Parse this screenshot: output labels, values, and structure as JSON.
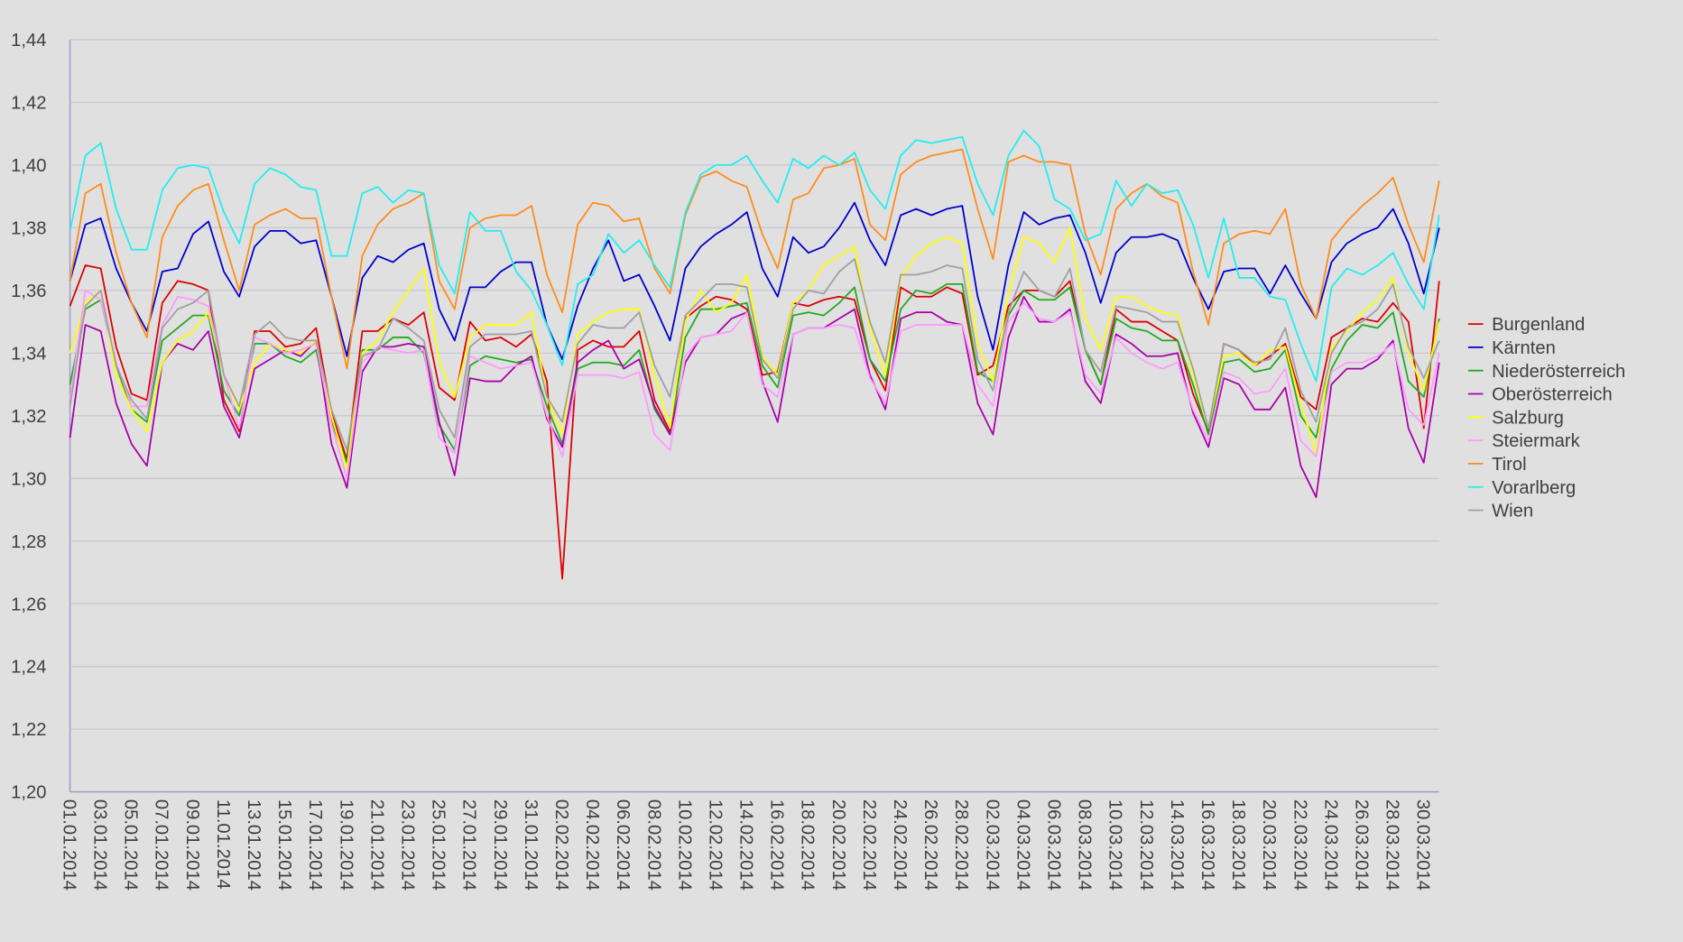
{
  "chart_data": {
    "type": "line",
    "grid": true,
    "legend": "right",
    "ylim": [
      1.2,
      1.44
    ],
    "yticks": [
      {
        "value": 1.2,
        "label": "1,20"
      },
      {
        "value": 1.22,
        "label": "1,22"
      },
      {
        "value": 1.24,
        "label": "1,24"
      },
      {
        "value": 1.26,
        "label": "1,26"
      },
      {
        "value": 1.28,
        "label": "1,28"
      },
      {
        "value": 1.3,
        "label": "1,30"
      },
      {
        "value": 1.32,
        "label": "1,32"
      },
      {
        "value": 1.34,
        "label": "1,34"
      },
      {
        "value": 1.36,
        "label": "1,36"
      },
      {
        "value": 1.38,
        "label": "1,38"
      },
      {
        "value": 1.4,
        "label": "1,40"
      },
      {
        "value": 1.42,
        "label": "1,42"
      },
      {
        "value": 1.44,
        "label": "1,44"
      }
    ],
    "categories": [
      "01.01.2014",
      null,
      "03.01.2014",
      null,
      "05.01.2014",
      null,
      "07.01.2014",
      null,
      "09.01.2014",
      null,
      "11.01.2014",
      null,
      "13.01.2014",
      null,
      "15.01.2014",
      null,
      "17.01.2014",
      null,
      "19.01.2014",
      null,
      "21.01.2014",
      null,
      "23.01.2014",
      null,
      "25.01.2014",
      null,
      "27.01.2014",
      null,
      "29.01.2014",
      null,
      "31.01.2014",
      null,
      "02.02.2014",
      null,
      "04.02.2014",
      null,
      "06.02.2014",
      null,
      "08.02.2014",
      null,
      "10.02.2014",
      null,
      "12.02.2014",
      null,
      "14.02.2014",
      null,
      "16.02.2014",
      null,
      "18.02.2014",
      null,
      "20.02.2014",
      null,
      "22.02.2014",
      null,
      "24.02.2014",
      null,
      "26.02.2014",
      null,
      "28.02.2014",
      null,
      "02.03.2014",
      null,
      "04.03.2014",
      null,
      "06.03.2014",
      null,
      "08.03.2014",
      null,
      "10.03.2014",
      null,
      "12.03.2014",
      null,
      "14.03.2014",
      null,
      "16.03.2014",
      null,
      "18.03.2014",
      null,
      "20.03.2014",
      null,
      "22.03.2014",
      null,
      "24.03.2014",
      null,
      "26.03.2014",
      null,
      "28.03.2014",
      null,
      "30.03.2014",
      null
    ],
    "series": [
      {
        "name": "Burgenland",
        "color": "#dd0000",
        "values": [
          1.355,
          1.368,
          1.367,
          1.342,
          1.327,
          1.325,
          1.356,
          1.363,
          1.362,
          1.36,
          1.325,
          1.315,
          1.347,
          1.347,
          1.342,
          1.343,
          1.348,
          1.321,
          1.306,
          1.347,
          1.347,
          1.351,
          1.349,
          1.353,
          1.329,
          1.325,
          1.35,
          1.344,
          1.345,
          1.342,
          1.346,
          1.331,
          1.268,
          1.341,
          1.344,
          1.342,
          1.342,
          1.347,
          1.325,
          1.315,
          1.351,
          1.355,
          1.358,
          1.357,
          1.354,
          1.333,
          1.334,
          1.356,
          1.355,
          1.357,
          1.358,
          1.357,
          1.338,
          1.328,
          1.361,
          1.358,
          1.358,
          1.361,
          1.359,
          1.333,
          1.336,
          1.355,
          1.36,
          1.36,
          1.358,
          1.363,
          1.341,
          1.33,
          1.354,
          1.35,
          1.35,
          1.347,
          1.344,
          1.327,
          1.315,
          1.343,
          1.341,
          1.336,
          1.339,
          1.343,
          1.326,
          1.322,
          1.345,
          1.348,
          1.351,
          1.35,
          1.356,
          1.35,
          1.316,
          1.363
        ]
      },
      {
        "name": "Kärnten",
        "color": "#0000cc",
        "values": [
          1.363,
          1.381,
          1.383,
          1.367,
          1.356,
          1.347,
          1.366,
          1.367,
          1.378,
          1.382,
          1.366,
          1.358,
          1.374,
          1.379,
          1.379,
          1.375,
          1.376,
          1.358,
          1.339,
          1.364,
          1.371,
          1.369,
          1.373,
          1.375,
          1.354,
          1.344,
          1.361,
          1.361,
          1.366,
          1.369,
          1.369,
          1.349,
          1.338,
          1.355,
          1.367,
          1.376,
          1.363,
          1.365,
          1.355,
          1.344,
          1.367,
          1.374,
          1.378,
          1.381,
          1.385,
          1.367,
          1.358,
          1.377,
          1.372,
          1.374,
          1.38,
          1.388,
          1.376,
          1.368,
          1.384,
          1.386,
          1.384,
          1.386,
          1.387,
          1.358,
          1.341,
          1.368,
          1.385,
          1.381,
          1.383,
          1.384,
          1.372,
          1.356,
          1.372,
          1.377,
          1.377,
          1.378,
          1.376,
          1.364,
          1.354,
          1.366,
          1.367,
          1.367,
          1.359,
          1.368,
          1.359,
          1.351,
          1.369,
          1.375,
          1.378,
          1.38,
          1.386,
          1.375,
          1.359,
          1.38
        ]
      },
      {
        "name": "Niederösterreich",
        "color": "#22aa22",
        "values": [
          1.33,
          1.354,
          1.357,
          1.336,
          1.322,
          1.318,
          1.344,
          1.348,
          1.352,
          1.352,
          1.328,
          1.32,
          1.343,
          1.343,
          1.339,
          1.337,
          1.341,
          1.318,
          1.305,
          1.341,
          1.341,
          1.345,
          1.345,
          1.34,
          1.317,
          1.309,
          1.336,
          1.339,
          1.338,
          1.337,
          1.338,
          1.323,
          1.311,
          1.335,
          1.337,
          1.337,
          1.336,
          1.341,
          1.322,
          1.314,
          1.345,
          1.354,
          1.354,
          1.355,
          1.356,
          1.336,
          1.329,
          1.352,
          1.353,
          1.352,
          1.356,
          1.361,
          1.338,
          1.331,
          1.354,
          1.36,
          1.359,
          1.362,
          1.362,
          1.334,
          1.331,
          1.352,
          1.36,
          1.357,
          1.357,
          1.361,
          1.341,
          1.33,
          1.351,
          1.348,
          1.347,
          1.344,
          1.344,
          1.33,
          1.314,
          1.337,
          1.338,
          1.334,
          1.335,
          1.341,
          1.32,
          1.313,
          1.335,
          1.344,
          1.349,
          1.348,
          1.353,
          1.331,
          1.326,
          1.351
        ]
      },
      {
        "name": "Oberösterreich",
        "color": "#aa00aa",
        "values": [
          1.313,
          1.349,
          1.347,
          1.324,
          1.311,
          1.304,
          1.337,
          1.343,
          1.341,
          1.347,
          1.323,
          1.313,
          1.335,
          1.338,
          1.341,
          1.339,
          1.344,
          1.311,
          1.297,
          1.334,
          1.342,
          1.342,
          1.343,
          1.342,
          1.318,
          1.301,
          1.332,
          1.331,
          1.331,
          1.336,
          1.339,
          1.319,
          1.31,
          1.337,
          1.341,
          1.344,
          1.335,
          1.338,
          1.323,
          1.314,
          1.337,
          1.345,
          1.346,
          1.351,
          1.353,
          1.331,
          1.318,
          1.346,
          1.348,
          1.348,
          1.351,
          1.354,
          1.333,
          1.322,
          1.351,
          1.353,
          1.353,
          1.35,
          1.349,
          1.324,
          1.314,
          1.345,
          1.358,
          1.35,
          1.35,
          1.354,
          1.331,
          1.324,
          1.346,
          1.343,
          1.339,
          1.339,
          1.34,
          1.321,
          1.31,
          1.332,
          1.33,
          1.322,
          1.322,
          1.329,
          1.304,
          1.294,
          1.33,
          1.335,
          1.335,
          1.338,
          1.344,
          1.316,
          1.305,
          1.337
        ]
      },
      {
        "name": "Salzburg",
        "color": "#ffff00",
        "values": [
          1.34,
          1.356,
          1.36,
          1.333,
          1.322,
          1.315,
          1.337,
          1.344,
          1.347,
          1.353,
          1.333,
          1.322,
          1.337,
          1.343,
          1.341,
          1.34,
          1.344,
          1.32,
          1.303,
          1.34,
          1.344,
          1.353,
          1.36,
          1.367,
          1.337,
          1.326,
          1.345,
          1.349,
          1.349,
          1.349,
          1.353,
          1.326,
          1.314,
          1.346,
          1.35,
          1.353,
          1.354,
          1.354,
          1.333,
          1.316,
          1.35,
          1.36,
          1.353,
          1.356,
          1.365,
          1.339,
          1.333,
          1.356,
          1.36,
          1.368,
          1.371,
          1.374,
          1.348,
          1.333,
          1.364,
          1.371,
          1.375,
          1.377,
          1.375,
          1.343,
          1.331,
          1.359,
          1.377,
          1.375,
          1.369,
          1.38,
          1.351,
          1.341,
          1.358,
          1.358,
          1.355,
          1.353,
          1.352,
          1.333,
          1.316,
          1.339,
          1.34,
          1.336,
          1.341,
          1.342,
          1.324,
          1.308,
          1.342,
          1.347,
          1.353,
          1.357,
          1.364,
          1.34,
          1.328,
          1.35
        ]
      },
      {
        "name": "Steiermark",
        "color": "#ff99ff",
        "values": [
          1.325,
          1.36,
          1.357,
          1.337,
          1.323,
          1.323,
          1.349,
          1.358,
          1.357,
          1.355,
          1.333,
          1.316,
          1.345,
          1.343,
          1.34,
          1.341,
          1.343,
          1.317,
          1.3,
          1.337,
          1.342,
          1.341,
          1.34,
          1.341,
          1.313,
          1.308,
          1.339,
          1.337,
          1.335,
          1.336,
          1.337,
          1.32,
          1.307,
          1.333,
          1.333,
          1.333,
          1.332,
          1.334,
          1.314,
          1.309,
          1.339,
          1.345,
          1.346,
          1.347,
          1.353,
          1.33,
          1.326,
          1.346,
          1.348,
          1.348,
          1.349,
          1.348,
          1.332,
          1.324,
          1.347,
          1.349,
          1.349,
          1.349,
          1.349,
          1.33,
          1.323,
          1.35,
          1.356,
          1.351,
          1.35,
          1.353,
          1.333,
          1.327,
          1.345,
          1.34,
          1.337,
          1.335,
          1.337,
          1.322,
          1.312,
          1.334,
          1.332,
          1.327,
          1.328,
          1.335,
          1.312,
          1.307,
          1.334,
          1.337,
          1.337,
          1.339,
          1.343,
          1.322,
          1.317,
          1.34
        ]
      },
      {
        "name": "Tirol",
        "color": "#ff8c1a",
        "values": [
          1.363,
          1.391,
          1.394,
          1.372,
          1.356,
          1.345,
          1.377,
          1.387,
          1.392,
          1.394,
          1.376,
          1.36,
          1.381,
          1.384,
          1.386,
          1.383,
          1.383,
          1.358,
          1.335,
          1.371,
          1.381,
          1.386,
          1.388,
          1.391,
          1.363,
          1.354,
          1.38,
          1.383,
          1.384,
          1.384,
          1.387,
          1.365,
          1.353,
          1.381,
          1.388,
          1.387,
          1.382,
          1.383,
          1.367,
          1.359,
          1.384,
          1.396,
          1.398,
          1.395,
          1.393,
          1.378,
          1.367,
          1.389,
          1.391,
          1.399,
          1.4,
          1.402,
          1.381,
          1.376,
          1.397,
          1.401,
          1.403,
          1.404,
          1.405,
          1.386,
          1.37,
          1.401,
          1.403,
          1.401,
          1.401,
          1.4,
          1.378,
          1.365,
          1.386,
          1.391,
          1.394,
          1.39,
          1.388,
          1.366,
          1.349,
          1.375,
          1.378,
          1.379,
          1.378,
          1.386,
          1.362,
          1.351,
          1.376,
          1.382,
          1.387,
          1.391,
          1.396,
          1.381,
          1.369,
          1.395
        ]
      },
      {
        "name": "Vorarlberg",
        "color": "#22eeee",
        "values": [
          1.379,
          1.403,
          1.407,
          1.386,
          1.373,
          1.373,
          1.392,
          1.399,
          1.4,
          1.399,
          1.385,
          1.375,
          1.394,
          1.399,
          1.397,
          1.393,
          1.392,
          1.371,
          1.371,
          1.391,
          1.393,
          1.388,
          1.392,
          1.391,
          1.368,
          1.359,
          1.385,
          1.379,
          1.379,
          1.366,
          1.36,
          1.349,
          1.336,
          1.362,
          1.365,
          1.378,
          1.372,
          1.376,
          1.368,
          1.361,
          1.385,
          1.397,
          1.4,
          1.4,
          1.403,
          1.395,
          1.388,
          1.402,
          1.399,
          1.403,
          1.4,
          1.404,
          1.392,
          1.386,
          1.403,
          1.408,
          1.407,
          1.408,
          1.409,
          1.394,
          1.384,
          1.403,
          1.411,
          1.406,
          1.389,
          1.386,
          1.376,
          1.378,
          1.395,
          1.387,
          1.394,
          1.391,
          1.392,
          1.381,
          1.364,
          1.383,
          1.364,
          1.364,
          1.358,
          1.357,
          1.343,
          1.331,
          1.361,
          1.367,
          1.365,
          1.368,
          1.372,
          1.362,
          1.354,
          1.384
        ]
      },
      {
        "name": "Wien",
        "color": "#a0a0a0",
        "values": [
          1.323,
          1.355,
          1.36,
          1.336,
          1.325,
          1.319,
          1.348,
          1.354,
          1.356,
          1.36,
          1.333,
          1.323,
          1.346,
          1.35,
          1.345,
          1.344,
          1.344,
          1.322,
          1.309,
          1.339,
          1.341,
          1.351,
          1.348,
          1.344,
          1.322,
          1.313,
          1.342,
          1.346,
          1.346,
          1.346,
          1.347,
          1.326,
          1.318,
          1.343,
          1.349,
          1.348,
          1.348,
          1.353,
          1.336,
          1.326,
          1.352,
          1.357,
          1.362,
          1.362,
          1.361,
          1.338,
          1.332,
          1.354,
          1.36,
          1.359,
          1.366,
          1.37,
          1.35,
          1.337,
          1.365,
          1.365,
          1.366,
          1.368,
          1.367,
          1.338,
          1.328,
          1.353,
          1.366,
          1.36,
          1.358,
          1.367,
          1.341,
          1.334,
          1.355,
          1.354,
          1.353,
          1.35,
          1.35,
          1.335,
          1.316,
          1.343,
          1.341,
          1.337,
          1.338,
          1.348,
          1.328,
          1.318,
          1.34,
          1.348,
          1.35,
          1.354,
          1.362,
          1.342,
          1.332,
          1.344
        ]
      }
    ]
  }
}
